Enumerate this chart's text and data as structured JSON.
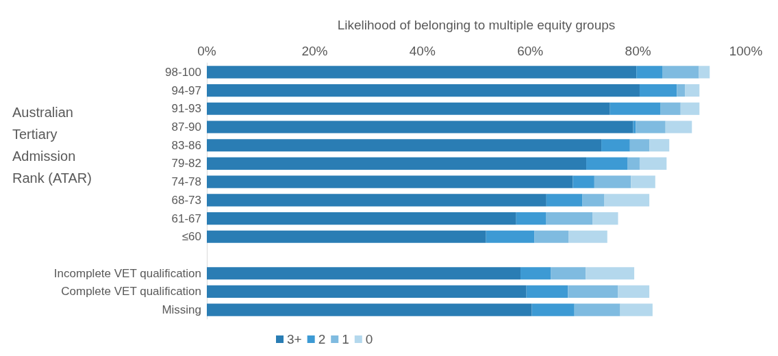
{
  "chart_data": {
    "type": "bar",
    "orientation": "horizontal",
    "stacked": true,
    "xlabel": "Likelihood of belonging to multiple equity groups",
    "ylabel": "Australian Tertiary Admission Rank (ATAR)",
    "categories": [
      "98-100",
      "94-97",
      "91-93",
      "87-90",
      "83-86",
      "79-82",
      "74-78",
      "68-73",
      "61-67",
      "≤60",
      null,
      "Incomplete VET qualification",
      "Complete VET qualification",
      "Missing"
    ],
    "series": [
      {
        "name": "3+",
        "color": "#2a7db4",
        "values": [
          79.7,
          80.3,
          74.8,
          79.1,
          73.2,
          70.4,
          67.9,
          63.0,
          57.4,
          51.8,
          null,
          58.2,
          59.3,
          60.3
        ]
      },
      {
        "name": "2",
        "color": "#3d9ad4",
        "values": [
          4.8,
          6.9,
          9.4,
          0.5,
          5.3,
          7.7,
          4.0,
          6.7,
          5.5,
          9.0,
          null,
          5.6,
          7.7,
          7.9
        ]
      },
      {
        "name": "1",
        "color": "#7fbbe0",
        "values": [
          6.8,
          1.5,
          3.7,
          5.5,
          3.6,
          2.2,
          6.8,
          4.0,
          8.7,
          6.3,
          null,
          6.5,
          9.3,
          8.5
        ]
      },
      {
        "name": "0",
        "color": "#b4d8ed",
        "values": [
          2.0,
          2.7,
          3.5,
          4.9,
          3.7,
          5.0,
          4.5,
          8.4,
          4.7,
          7.2,
          null,
          9.0,
          5.8,
          6.0
        ]
      }
    ],
    "xlim": [
      0,
      100
    ],
    "xticks": [
      {
        "value": 0,
        "label": "0%"
      },
      {
        "value": 20,
        "label": "20%"
      },
      {
        "value": 40,
        "label": "40%"
      },
      {
        "value": 60,
        "label": "60%"
      },
      {
        "value": 80,
        "label": "80%"
      },
      {
        "value": 100,
        "label": "100%"
      }
    ],
    "grid": false,
    "legend": "bottom"
  }
}
